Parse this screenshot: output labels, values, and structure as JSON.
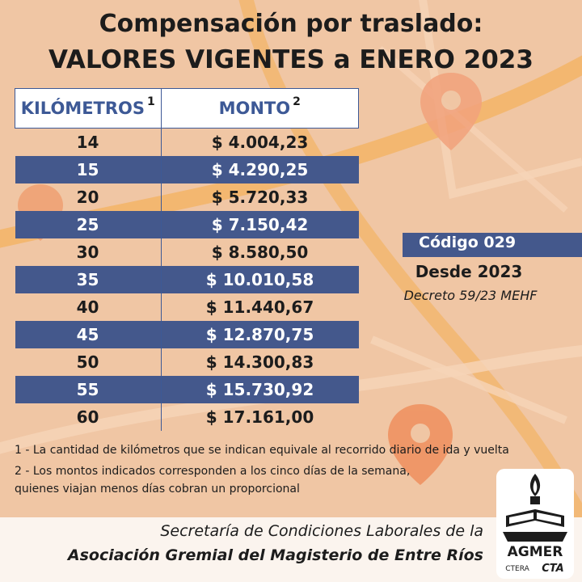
{
  "title_line1": "Compensación por traslado:",
  "title_line2": "VALORES VIGENTES a ENERO 2023",
  "table": {
    "header_km": "KILÓMETROS",
    "header_km_sup": "1",
    "header_amount": "MONTO",
    "header_amount_sup": "2",
    "rows": [
      {
        "km": "14",
        "amount": "$ 4.004,23"
      },
      {
        "km": "15",
        "amount": "$ 4.290,25"
      },
      {
        "km": "20",
        "amount": "$ 5.720,33"
      },
      {
        "km": "25",
        "amount": "$ 7.150,42"
      },
      {
        "km": "30",
        "amount": "$ 8.580,50"
      },
      {
        "km": "35",
        "amount": "$ 10.010,58"
      },
      {
        "km": "40",
        "amount": "$ 11.440,67"
      },
      {
        "km": "45",
        "amount": "$ 12.870,75"
      },
      {
        "km": "50",
        "amount": "$ 14.300,83"
      },
      {
        "km": "55",
        "amount": "$ 15.730,92"
      },
      {
        "km": "60",
        "amount": "$ 17.161,00"
      }
    ]
  },
  "code": "Código 029",
  "since": "Desde 2023",
  "decree": "Decreto 59/23 MEHF",
  "notes": {
    "n1": "1 - La cantidad de kilómetros que se indican equivale al recorrido diario de ida y vuelta",
    "n2": "2 - Los montos indicados corresponden a los cinco días de la semana,",
    "n3": "quienes viajan menos días cobran un proporcional"
  },
  "footer": {
    "line1": "Secretaría de Condiciones Laborales de la",
    "line2": "Asociación Gremial del Magisterio de Entre Ríos"
  },
  "logo": {
    "name": "AGMER",
    "sub1": "CTERA",
    "sub2": "CTA"
  },
  "colors": {
    "band": "#44588c",
    "header_text": "#3d5996",
    "background": "#f0c6a4"
  }
}
